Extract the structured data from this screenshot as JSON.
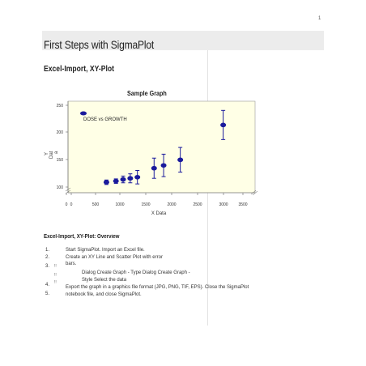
{
  "page": {
    "number": "1"
  },
  "header": {
    "title": "First Steps with SigmaPlot"
  },
  "section": {
    "title": "Excel-Import, XY-Plot"
  },
  "chart_data": {
    "type": "scatter",
    "title": "Sample Graph",
    "xlabel": "X Data",
    "ylabel_lines": [
      "Y",
      "Dat",
      "a"
    ],
    "xlim": [
      0,
      3500
    ],
    "ylim": [
      100,
      250
    ],
    "x_ticks": [
      "0",
      "0",
      "500",
      "1000",
      "1500",
      "2000",
      "2500",
      "3000",
      "3500"
    ],
    "y_ticks": [
      "250",
      "200",
      "150",
      "100"
    ],
    "legend": "DOSE vs GROWTH",
    "background": "#ffffe6",
    "marker_color": "#1a1a9c",
    "points": [
      {
        "x": 500,
        "y": 110,
        "err": 4
      },
      {
        "x": 700,
        "y": 112,
        "err": 4
      },
      {
        "x": 850,
        "y": 115,
        "err": 6
      },
      {
        "x": 1000,
        "y": 117,
        "err": 8
      },
      {
        "x": 1150,
        "y": 119,
        "err": 12
      },
      {
        "x": 1500,
        "y": 135,
        "err": 18
      },
      {
        "x": 1700,
        "y": 140,
        "err": 20
      },
      {
        "x": 2050,
        "y": 150,
        "err": 22
      },
      {
        "x": 2950,
        "y": 212,
        "err": 26
      }
    ]
  },
  "overview": {
    "title": "Excel-Import, XY-Plot: Overview",
    "steps": [
      {
        "num": "1.",
        "text": "Start SigmaPlot.  Import an Excel file."
      },
      {
        "num": "2.",
        "text": "Create an XY Line and Scatter Plot with error"
      },
      {
        "num": "",
        "text": "bars."
      },
      {
        "num": "3.",
        "text": ""
      },
      {
        "num": "",
        "text": "Dialog Create Graph - Type   Dialog Create Graph -"
      },
      {
        "num": "",
        "text": "Style  Select the data"
      },
      {
        "num": "4.",
        "text": "Export the graph in a graphics file format (JPG, PNG, TIF, EPS).  Close the SigmaPlot"
      },
      {
        "num": "5.",
        "text": "notebook file, and close SigmaPlot."
      }
    ],
    "bullets": [
      "!!",
      "!!",
      "!!"
    ]
  }
}
